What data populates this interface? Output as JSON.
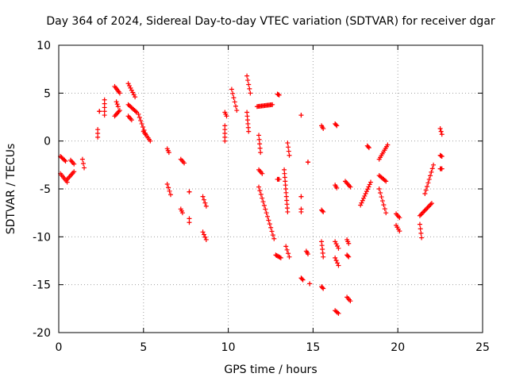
{
  "chart_data": {
    "type": "scatter",
    "title": "Day 364 of 2024, Sidereal Day-to-day VTEC variation (SDTVAR) for receiver dgar",
    "xlabel": "GPS time / hours",
    "ylabel": "SDTVAR / TECUs",
    "xlim": [
      0,
      25
    ],
    "ylim": [
      -20,
      10
    ],
    "xticks": [
      "0",
      "5",
      "10",
      "15",
      "20",
      "25"
    ],
    "yticks": [
      "10",
      "5",
      "0",
      "-5",
      "-10",
      "-15",
      "-20"
    ],
    "grid": true,
    "marker": "+",
    "marker_color": "#ff0000",
    "segments": [
      {
        "x0": 0.1,
        "x1": 0.4,
        "y0": -1.6,
        "y1": -2.1
      },
      {
        "x0": 0.1,
        "x1": 0.5,
        "y0": -3.4,
        "y1": -4.3
      },
      {
        "x0": 0.5,
        "x1": 0.9,
        "y0": -4.0,
        "y1": -3.2
      },
      {
        "x0": 0.7,
        "x1": 0.9,
        "y0": -2.0,
        "y1": -2.4
      },
      {
        "x0": 1.4,
        "x1": 1.5,
        "y0": -1.9,
        "y1": -2.8
      },
      {
        "x0": 2.3,
        "x1": 2.3,
        "y0": 1.2,
        "y1": 0.4
      },
      {
        "x0": 2.4,
        "x1": 2.4,
        "y0": 3.1,
        "y1": 3.1
      },
      {
        "x0": 2.7,
        "x1": 2.7,
        "y0": 4.3,
        "y1": 2.7
      },
      {
        "x0": 3.3,
        "x1": 3.6,
        "y0": 5.7,
        "y1": 5.0
      },
      {
        "x0": 3.4,
        "x1": 3.5,
        "y0": 4.1,
        "y1": 3.6
      },
      {
        "x0": 3.3,
        "x1": 3.6,
        "y0": 2.6,
        "y1": 3.2
      },
      {
        "x0": 4.1,
        "x1": 4.5,
        "y0": 6.0,
        "y1": 4.6
      },
      {
        "x0": 4.1,
        "x1": 4.6,
        "y0": 3.8,
        "y1": 3.0
      },
      {
        "x0": 4.1,
        "x1": 4.3,
        "y0": 2.6,
        "y1": 2.2
      },
      {
        "x0": 4.7,
        "x1": 5.1,
        "y0": 2.8,
        "y1": 0.8
      },
      {
        "x0": 5.0,
        "x1": 5.4,
        "y0": 1.0,
        "y1": 0.0
      },
      {
        "x0": 6.4,
        "x1": 6.5,
        "y0": -0.8,
        "y1": -1.2
      },
      {
        "x0": 6.4,
        "x1": 6.6,
        "y0": -4.5,
        "y1": -5.6
      },
      {
        "x0": 7.2,
        "x1": 7.4,
        "y0": -1.9,
        "y1": -2.3
      },
      {
        "x0": 7.2,
        "x1": 7.3,
        "y0": -7.1,
        "y1": -7.5
      },
      {
        "x0": 7.7,
        "x1": 7.7,
        "y0": -5.3,
        "y1": -5.3
      },
      {
        "x0": 7.7,
        "x1": 7.7,
        "y0": -8.1,
        "y1": -8.5
      },
      {
        "x0": 8.5,
        "x1": 8.7,
        "y0": -5.8,
        "y1": -6.8
      },
      {
        "x0": 8.5,
        "x1": 8.7,
        "y0": -9.5,
        "y1": -10.3
      },
      {
        "x0": 9.8,
        "x1": 9.9,
        "y0": 3.0,
        "y1": 2.6
      },
      {
        "x0": 9.8,
        "x1": 9.8,
        "y0": 1.6,
        "y1": 0.0
      },
      {
        "x0": 10.2,
        "x1": 10.5,
        "y0": 5.4,
        "y1": 3.2
      },
      {
        "x0": 11.1,
        "x1": 11.3,
        "y0": 6.8,
        "y1": 5.0
      },
      {
        "x0": 11.1,
        "x1": 11.2,
        "y0": 3.0,
        "y1": 1.0
      },
      {
        "x0": 11.7,
        "x1": 12.6,
        "y0": 3.6,
        "y1": 3.8
      },
      {
        "x0": 11.8,
        "x1": 11.9,
        "y0": 0.6,
        "y1": -1.2
      },
      {
        "x0": 11.8,
        "x1": 12.0,
        "y0": -3.0,
        "y1": -3.4
      },
      {
        "x0": 11.8,
        "x1": 12.7,
        "y0": -4.8,
        "y1": -10.2
      },
      {
        "x0": 12.9,
        "x1": 13.0,
        "y0": 4.9,
        "y1": 4.8
      },
      {
        "x0": 12.9,
        "x1": 13.0,
        "y0": -4.0,
        "y1": -4.0
      },
      {
        "x0": 12.8,
        "x1": 13.1,
        "y0": -11.9,
        "y1": -12.2
      },
      {
        "x0": 13.5,
        "x1": 13.6,
        "y0": -0.2,
        "y1": -1.5
      },
      {
        "x0": 13.3,
        "x1": 13.5,
        "y0": -3.0,
        "y1": -7.4
      },
      {
        "x0": 13.4,
        "x1": 13.6,
        "y0": -11.0,
        "y1": -12.1
      },
      {
        "x0": 14.3,
        "x1": 14.3,
        "y0": 2.7,
        "y1": 2.7
      },
      {
        "x0": 14.3,
        "x1": 14.3,
        "y0": -5.8,
        "y1": -5.8
      },
      {
        "x0": 14.3,
        "x1": 14.3,
        "y0": -7.1,
        "y1": -7.4
      },
      {
        "x0": 14.3,
        "x1": 14.4,
        "y0": -14.3,
        "y1": -14.5
      },
      {
        "x0": 14.6,
        "x1": 14.7,
        "y0": -11.5,
        "y1": -11.8
      },
      {
        "x0": 14.7,
        "x1": 14.7,
        "y0": -2.2,
        "y1": -2.2
      },
      {
        "x0": 14.8,
        "x1": 14.8,
        "y0": -14.9,
        "y1": -14.9
      },
      {
        "x0": 15.5,
        "x1": 15.6,
        "y0": 1.6,
        "y1": 1.3
      },
      {
        "x0": 15.5,
        "x1": 15.6,
        "y0": -7.2,
        "y1": -7.4
      },
      {
        "x0": 15.5,
        "x1": 15.6,
        "y0": -10.5,
        "y1": -12.1
      },
      {
        "x0": 15.5,
        "x1": 15.6,
        "y0": -15.2,
        "y1": -15.4
      },
      {
        "x0": 16.3,
        "x1": 16.4,
        "y0": 1.8,
        "y1": 1.6
      },
      {
        "x0": 16.3,
        "x1": 16.4,
        "y0": -4.6,
        "y1": -4.9
      },
      {
        "x0": 16.3,
        "x1": 16.5,
        "y0": -10.5,
        "y1": -11.2
      },
      {
        "x0": 16.3,
        "x1": 16.5,
        "y0": -12.2,
        "y1": -13.0
      },
      {
        "x0": 16.3,
        "x1": 16.5,
        "y0": -17.7,
        "y1": -18.0
      },
      {
        "x0": 16.9,
        "x1": 17.2,
        "y0": -4.2,
        "y1": -4.8
      },
      {
        "x0": 17.0,
        "x1": 17.1,
        "y0": -10.3,
        "y1": -10.7
      },
      {
        "x0": 17.0,
        "x1": 17.1,
        "y0": -11.9,
        "y1": -12.1
      },
      {
        "x0": 17.0,
        "x1": 17.2,
        "y0": -16.3,
        "y1": -16.7
      },
      {
        "x0": 17.8,
        "x1": 18.4,
        "y0": -6.7,
        "y1": -4.3
      },
      {
        "x0": 18.2,
        "x1": 18.3,
        "y0": -0.5,
        "y1": -0.7
      },
      {
        "x0": 18.9,
        "x1": 19.4,
        "y0": -1.9,
        "y1": -0.4
      },
      {
        "x0": 18.9,
        "x1": 19.3,
        "y0": -3.6,
        "y1": -4.2
      },
      {
        "x0": 18.9,
        "x1": 19.3,
        "y0": -5.0,
        "y1": -7.5
      },
      {
        "x0": 19.9,
        "x1": 20.1,
        "y0": -7.6,
        "y1": -8.0
      },
      {
        "x0": 19.9,
        "x1": 20.1,
        "y0": -8.8,
        "y1": -9.4
      },
      {
        "x0": 21.3,
        "x1": 21.4,
        "y0": -8.7,
        "y1": -10.1
      },
      {
        "x0": 21.3,
        "x1": 22.0,
        "y0": -7.8,
        "y1": -6.5
      },
      {
        "x0": 21.6,
        "x1": 22.1,
        "y0": -5.5,
        "y1": -2.5
      },
      {
        "x0": 22.5,
        "x1": 22.6,
        "y0": 1.3,
        "y1": 0.7
      },
      {
        "x0": 22.5,
        "x1": 22.6,
        "y0": -1.5,
        "y1": -1.6
      },
      {
        "x0": 22.5,
        "x1": 22.6,
        "y0": -2.9,
        "y1": -2.9
      }
    ]
  }
}
